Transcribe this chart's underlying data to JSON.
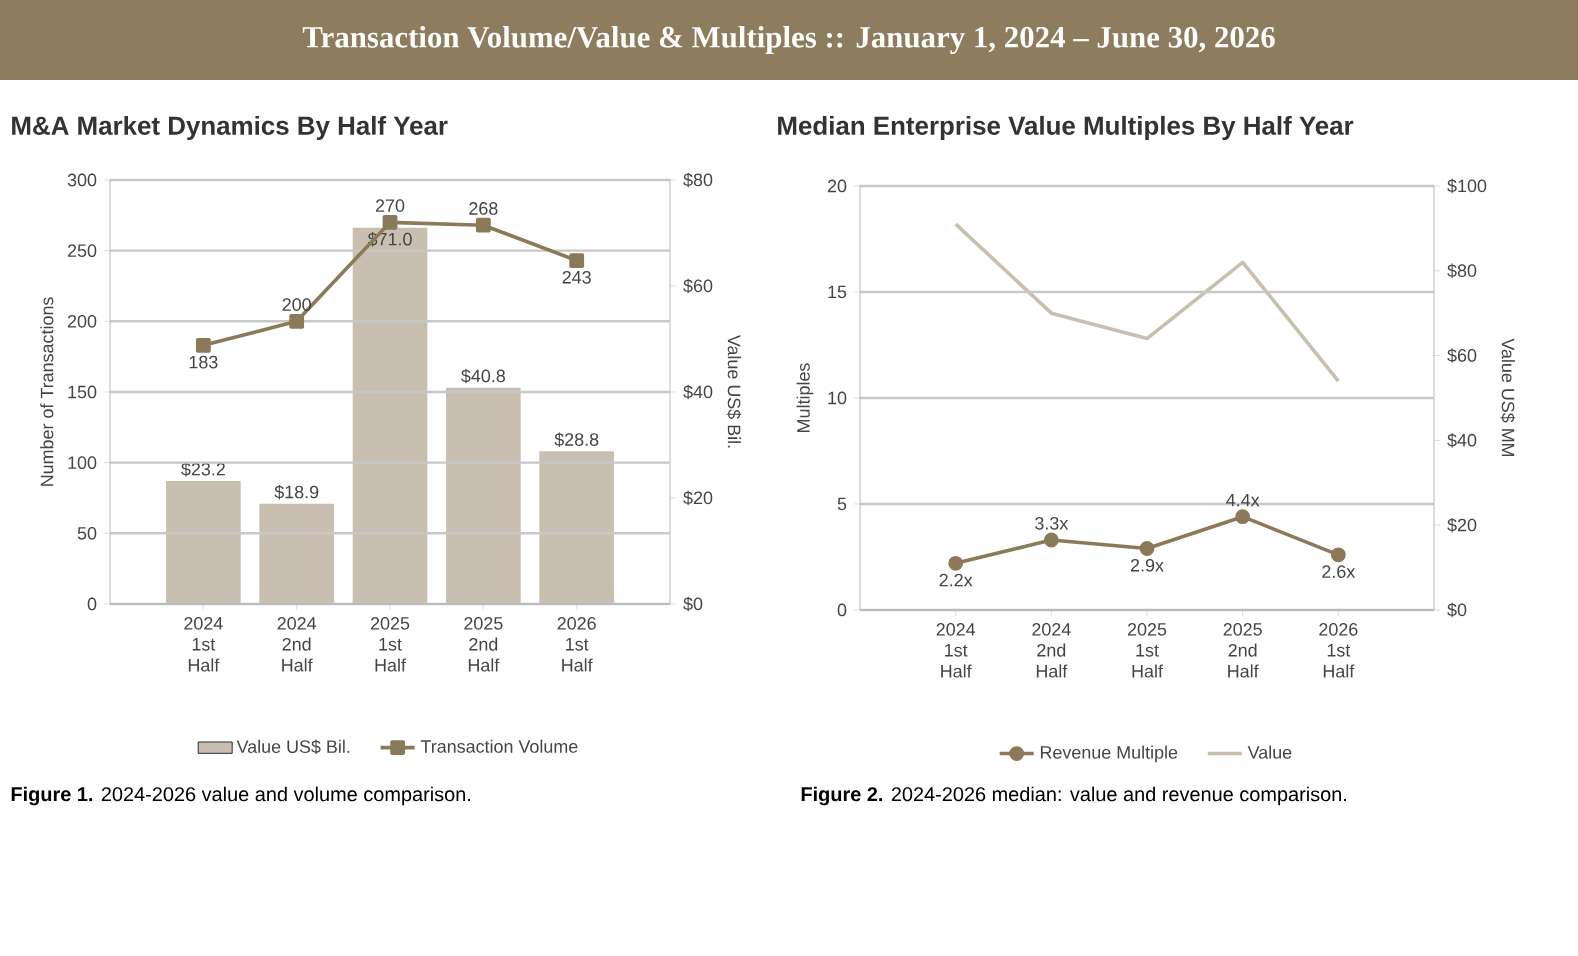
{
  "chart_data": [
    {
      "type": "bar",
      "title": "M&A Market Dynamics By Half Year",
      "categories": [
        "2024 1st Half",
        "2024 2nd Half",
        "2025 1st Half",
        "2025 2nd Half",
        "2026 1st Half"
      ],
      "series": [
        {
          "name": "Value US$ Bil.",
          "axis": "y2",
          "color": "#c9bfb0",
          "values": [
            23.2,
            18.9,
            71.0,
            40.8,
            28.8
          ],
          "value_labels": [
            "$23.2",
            "$18.9",
            "$71.0",
            "$40.8",
            "$28.8"
          ]
        },
        {
          "name": "Transaction Volume",
          "type": "line",
          "color": "#8b7a5a",
          "marker": "square",
          "values": [
            183,
            200,
            270,
            268,
            243
          ],
          "value_labels": [
            "183",
            "200",
            "270",
            "268",
            "243"
          ]
        }
      ],
      "ylabel": "Number of Transactions",
      "y2label": "Value US$ Bil.",
      "ylim": [
        0,
        300
      ],
      "yticks": [
        0,
        50,
        100,
        150,
        200,
        250,
        300
      ],
      "y2lim": [
        0,
        80
      ],
      "y2ticks": [
        {
          "value": 0,
          "label": "$0"
        },
        {
          "value": 20,
          "label": "$20"
        },
        {
          "value": 40,
          "label": "$40"
        },
        {
          "value": 60,
          "label": "$60"
        },
        {
          "value": 80,
          "label": "$80"
        }
      ],
      "grid": "y",
      "legend": "bottom",
      "annotations": [
        "Transaction Volume/Value & Multiples  ::  January 1, 2024 – June 30, 2026",
        "**Figure 1.** 2024-2026 value and volume comparison."
      ]
    },
    {
      "type": "line",
      "title": "Median Enterprise Value Multiples By Half Year",
      "categories": [
        "2024 1st Half",
        "2024 2nd Half",
        "2025 1st Half",
        "2025 2nd Half",
        "2026 1st Half"
      ],
      "series": [
        {
          "name": "Revenue Multiple",
          "color": "#8b7a5a",
          "marker": "circle",
          "values": [
            2.2,
            3.3,
            2.9,
            4.4,
            2.6
          ],
          "value_labels": [
            "2.2x",
            "3.3x",
            "2.9x",
            "4.4x",
            "2.6x"
          ]
        },
        {
          "name": "Value",
          "axis": "y2",
          "color": "#c8bfae",
          "values": [
            91,
            70,
            64,
            82,
            54
          ]
        }
      ],
      "ylabel": "Multiples",
      "y2label": "Value US$ MM",
      "ylim": [
        0,
        20
      ],
      "yticks": [
        0,
        5,
        10,
        15,
        20
      ],
      "y2lim": [
        0,
        100
      ],
      "y2ticks": [
        {
          "value": 0,
          "label": "$0"
        },
        {
          "value": 20,
          "label": "$20"
        },
        {
          "value": 40,
          "label": "$40"
        },
        {
          "value": 60,
          "label": "$60"
        },
        {
          "value": 80,
          "label": "$80"
        },
        {
          "value": 100,
          "label": "$100"
        }
      ],
      "grid": "y",
      "legend": "bottom",
      "annotations": [
        "**Figure 2.** 2024-2026 median: value and revenue comparison."
      ]
    }
  ]
}
